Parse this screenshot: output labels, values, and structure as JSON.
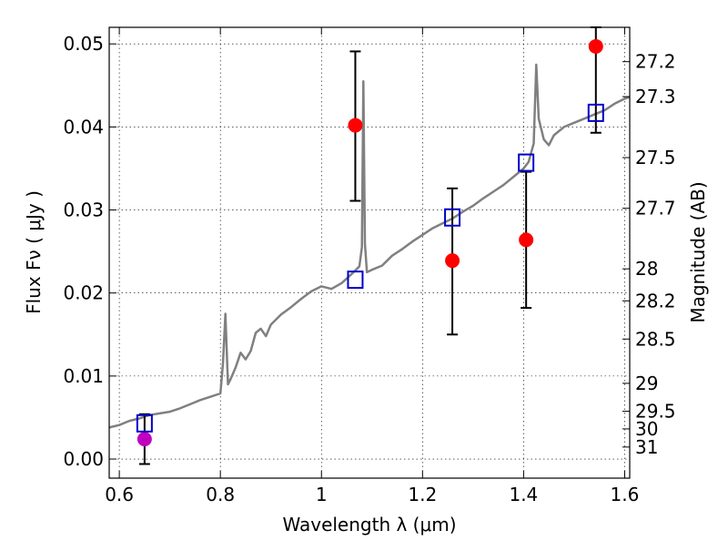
{
  "chart_data": {
    "type": "scatter",
    "xlabel": "Wavelength  λ (μm)",
    "ylabel": "Flux  Fν  ( μJy )",
    "y2label": "Magnitude (AB)",
    "xlim": [
      0.58,
      1.61
    ],
    "ylim": [
      -0.0023,
      0.052
    ],
    "grid": true,
    "xticks": [
      0.6,
      0.8,
      1.0,
      1.2,
      1.4,
      1.6
    ],
    "xtick_labels": [
      "0.6",
      "0.8",
      "1",
      "1.2",
      "1.4",
      "1.6"
    ],
    "yticks": [
      0.0,
      0.01,
      0.02,
      0.03,
      0.04,
      0.05
    ],
    "ytick_labels": [
      "0.00",
      "0.01",
      "0.02",
      "0.03",
      "0.04",
      "0.05"
    ],
    "y2_ticks": [
      27.2,
      27.3,
      27.5,
      27.7,
      28,
      28.2,
      28.5,
      29,
      29.5,
      30,
      31
    ],
    "y2_tick_labels": [
      "27.2",
      "27.3",
      "27.5",
      "27.7",
      "28",
      "28.2",
      "28.5",
      "29",
      "29.5",
      "30",
      "31"
    ],
    "observed_points": {
      "color": "#ff0000",
      "x": [
        1.067,
        1.259,
        1.405,
        1.543
      ],
      "y": [
        0.0402,
        0.0239,
        0.0264,
        0.0497
      ],
      "yerr_low": [
        0.0311,
        0.015,
        0.0182,
        0.0393
      ],
      "yerr_high": [
        0.0491,
        0.0326,
        0.0346,
        0.052
      ]
    },
    "upper_limit_point": {
      "color": "#bf00bf",
      "x": 0.65,
      "y": 0.0024,
      "yerr_low": -0.0006,
      "yerr_high": 0.0054
    },
    "model_photometry": {
      "color": "#0000cc",
      "x": [
        0.65,
        1.067,
        1.259,
        1.405,
        1.543
      ],
      "y": [
        0.0043,
        0.0216,
        0.0291,
        0.0357,
        0.0417
      ]
    },
    "model_spectrum": {
      "color": "#808080",
      "x": [
        0.58,
        0.6,
        0.62,
        0.64,
        0.66,
        0.68,
        0.7,
        0.72,
        0.74,
        0.76,
        0.78,
        0.8,
        0.805,
        0.81,
        0.815,
        0.82,
        0.83,
        0.84,
        0.85,
        0.86,
        0.87,
        0.88,
        0.89,
        0.9,
        0.91,
        0.92,
        0.94,
        0.96,
        0.98,
        1.0,
        1.02,
        1.04,
        1.06,
        1.07,
        1.075,
        1.08,
        1.083,
        1.086,
        1.09,
        1.1,
        1.12,
        1.14,
        1.16,
        1.18,
        1.2,
        1.22,
        1.24,
        1.26,
        1.28,
        1.3,
        1.32,
        1.34,
        1.36,
        1.38,
        1.4,
        1.41,
        1.42,
        1.425,
        1.43,
        1.44,
        1.45,
        1.46,
        1.48,
        1.5,
        1.52,
        1.54,
        1.56,
        1.58,
        1.6,
        1.61
      ],
      "y": [
        0.0038,
        0.0041,
        0.0046,
        0.0049,
        0.0053,
        0.0055,
        0.0057,
        0.0061,
        0.0066,
        0.0071,
        0.0075,
        0.0079,
        0.0115,
        0.0175,
        0.009,
        0.0096,
        0.011,
        0.0128,
        0.012,
        0.013,
        0.0152,
        0.0157,
        0.0148,
        0.0162,
        0.0168,
        0.0174,
        0.0183,
        0.0193,
        0.0202,
        0.0208,
        0.0205,
        0.0212,
        0.0223,
        0.0229,
        0.0232,
        0.0255,
        0.0455,
        0.026,
        0.0225,
        0.0228,
        0.0233,
        0.0245,
        0.0253,
        0.0262,
        0.027,
        0.0278,
        0.0284,
        0.029,
        0.0298,
        0.0305,
        0.0314,
        0.0322,
        0.033,
        0.034,
        0.035,
        0.0358,
        0.038,
        0.0475,
        0.041,
        0.0385,
        0.0378,
        0.039,
        0.04,
        0.0405,
        0.041,
        0.0415,
        0.042,
        0.0428,
        0.0434,
        0.0436
      ]
    }
  }
}
